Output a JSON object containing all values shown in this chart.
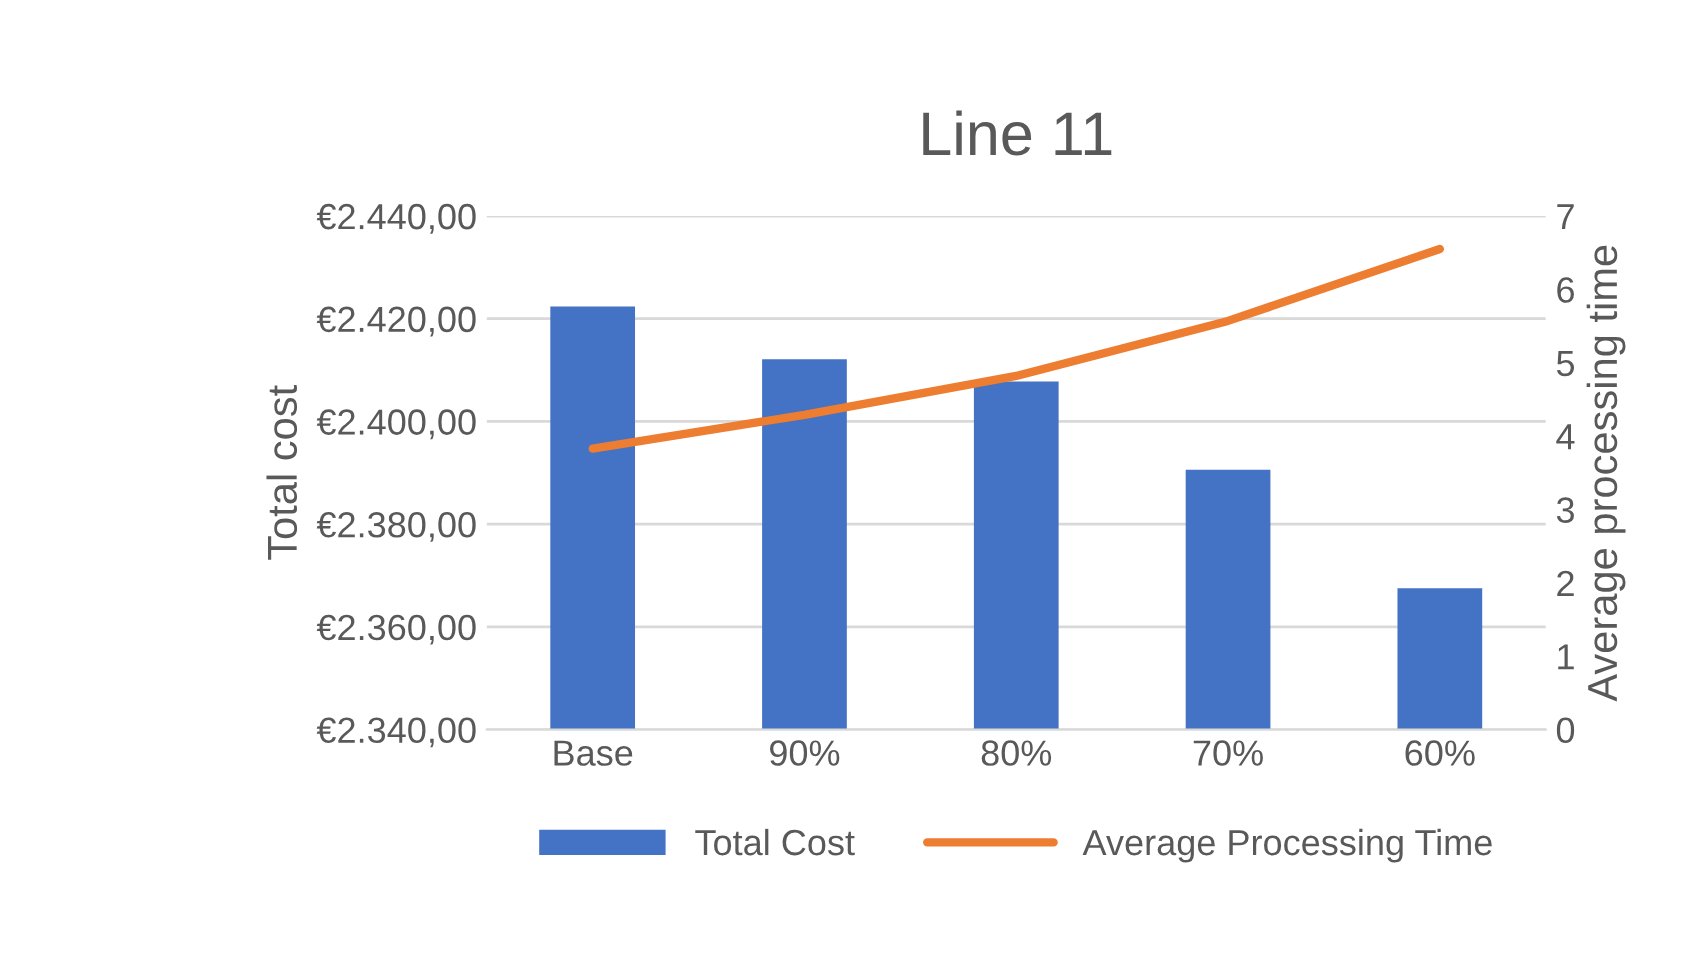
{
  "chart_data": {
    "type": "bar",
    "title": "Line 11",
    "ylabel": "Total cost",
    "y2label": "Average processing time",
    "categories": [
      "Base",
      "90%",
      "80%",
      "70%",
      "60%"
    ],
    "series": [
      {
        "name": "Total Cost",
        "color": "#4472c4",
        "values": [
          2422.4,
          2412.1,
          2407.8,
          2390.6,
          2367.5
        ]
      },
      {
        "name": "Average Processing Time",
        "type": "line",
        "axis": "y2",
        "color": "#ed7d31",
        "values": [
          3.83,
          4.29,
          4.82,
          5.57,
          6.55
        ]
      }
    ],
    "ylim": [
      2340,
      2440
    ],
    "yticks": [
      {
        "value": 2340,
        "label": "€2.340,00"
      },
      {
        "value": 2360,
        "label": "€2.360,00"
      },
      {
        "value": 2380,
        "label": "€2.380,00"
      },
      {
        "value": 2400,
        "label": "€2.400,00"
      },
      {
        "value": 2420,
        "label": "€2.420,00"
      },
      {
        "value": 2440,
        "label": "€2.440,00"
      }
    ],
    "y2lim": [
      0,
      7
    ],
    "y2ticks": [
      0,
      1,
      2,
      3,
      4,
      5,
      6,
      7
    ],
    "grid": "y",
    "legend": "bottom"
  }
}
